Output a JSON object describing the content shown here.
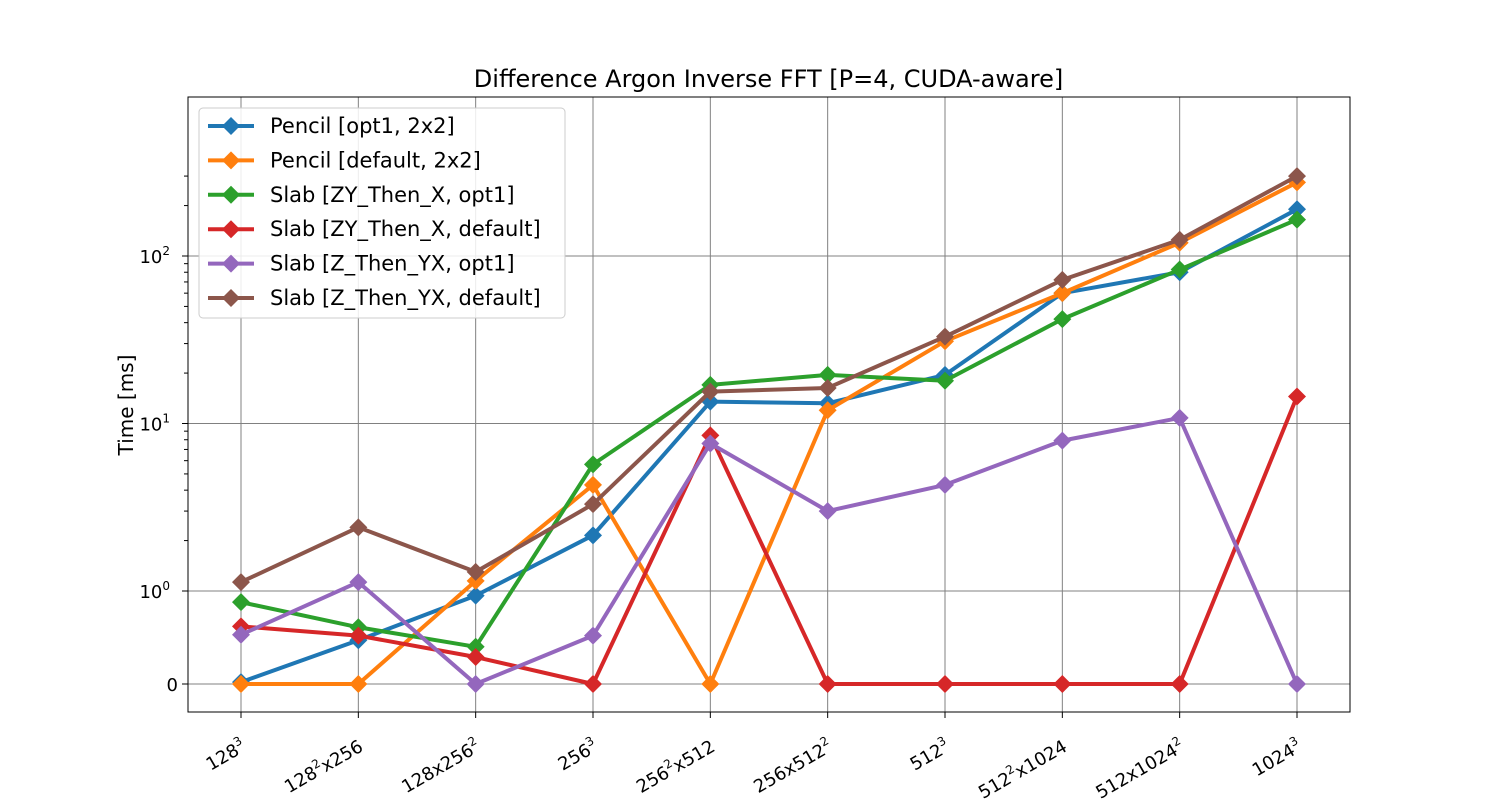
{
  "chart_data": {
    "type": "line",
    "title": "Difference Argon Inverse FFT [P=4, CUDA-aware]",
    "xlabel": "",
    "ylabel": "Time [ms]",
    "yscale": "symlog",
    "ylim": [
      -0.3,
      400
    ],
    "grid": true,
    "legend_position": "top-left",
    "categories": [
      {
        "base": "128",
        "sup": "3",
        "tail": ""
      },
      {
        "base": "128",
        "sup": "2",
        "tail": "x256"
      },
      {
        "base": "128x256",
        "sup": "2",
        "tail": ""
      },
      {
        "base": "256",
        "sup": "3",
        "tail": ""
      },
      {
        "base": "256",
        "sup": "2",
        "tail": "x512"
      },
      {
        "base": "256x512",
        "sup": "2",
        "tail": ""
      },
      {
        "base": "512",
        "sup": "3",
        "tail": ""
      },
      {
        "base": "512",
        "sup": "2",
        "tail": "x1024"
      },
      {
        "base": "512x1024",
        "sup": "2",
        "tail": ""
      },
      {
        "base": "1024",
        "sup": "3",
        "tail": ""
      }
    ],
    "y_ticks": [
      {
        "value": 0,
        "base": "0",
        "sup": ""
      },
      {
        "value": 1,
        "base": "10",
        "sup": "0"
      },
      {
        "value": 10,
        "base": "10",
        "sup": "1"
      },
      {
        "value": 100,
        "base": "10",
        "sup": "2"
      }
    ],
    "series": [
      {
        "name": "Pencil [opt1, 2x2]",
        "color": "#1f77b4",
        "values": [
          0.02,
          0.47,
          0.95,
          2.15,
          13.5,
          13.2,
          19.5,
          60,
          80,
          190
        ]
      },
      {
        "name": "Pencil [default, 2x2]",
        "color": "#ff7f0e",
        "values": [
          0,
          0,
          1.15,
          4.3,
          0,
          12,
          31,
          60,
          120,
          275
        ]
      },
      {
        "name": "Slab [ZY_Then_X, opt1]",
        "color": "#2ca02c",
        "values": [
          0.88,
          0.61,
          0.4,
          5.7,
          17,
          19.5,
          18,
          42,
          83,
          165
        ]
      },
      {
        "name": "Slab [ZY_Then_X, default]",
        "color": "#d62728",
        "values": [
          0.62,
          0.52,
          0.29,
          0,
          8.5,
          0,
          0,
          0,
          0,
          14.5
        ]
      },
      {
        "name": "Slab [Z_Then_YX, opt1]",
        "color": "#9467bd",
        "values": [
          0.53,
          1.13,
          0,
          0.52,
          7.6,
          3.0,
          4.3,
          7.9,
          10.8,
          0
        ]
      },
      {
        "name": "Slab [Z_Then_YX, default]",
        "color": "#8c564b",
        "values": [
          1.13,
          2.4,
          1.3,
          3.3,
          15.5,
          16.3,
          33,
          72,
          125,
          300
        ]
      }
    ]
  }
}
